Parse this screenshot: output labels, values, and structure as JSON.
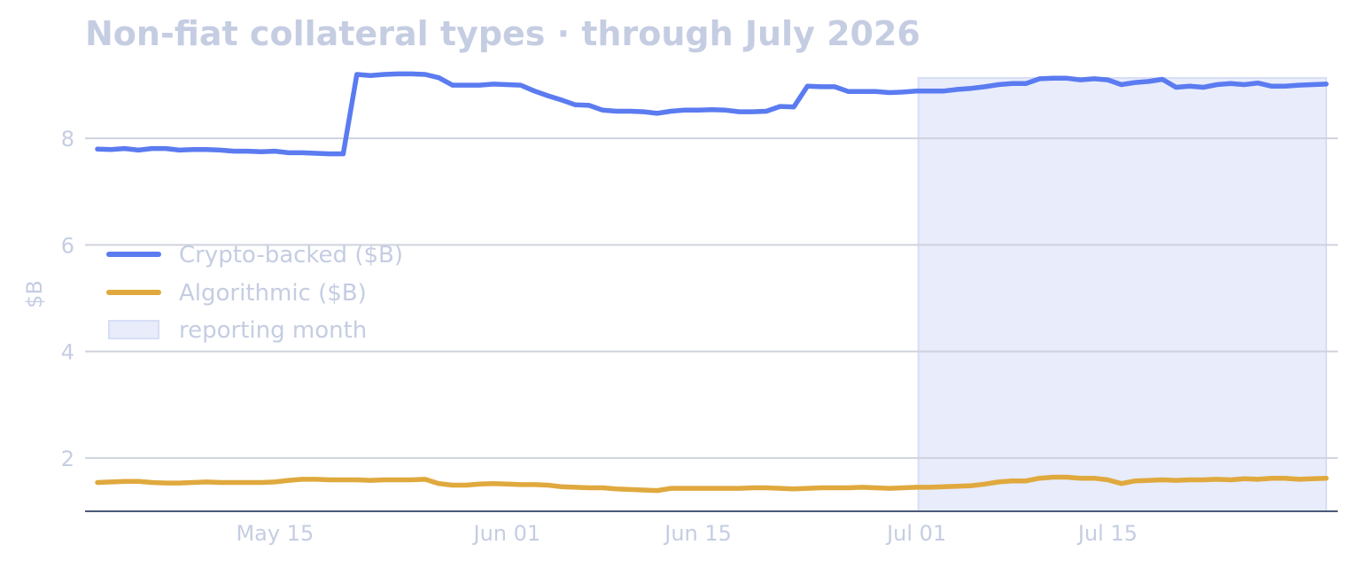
{
  "chart_data": {
    "type": "line",
    "title": "Non-fiat collateral types · through July 2026",
    "xlabel": "",
    "ylabel": "$B",
    "x_range": [
      "2026-05-02",
      "2026-07-31"
    ],
    "ylim": [
      1.0,
      9.6
    ],
    "y_ticks": [
      2,
      4,
      6,
      8
    ],
    "x_ticks": [
      {
        "date": "2026-05-15",
        "label": "May 15"
      },
      {
        "date": "2026-06-01",
        "label": "Jun 01"
      },
      {
        "date": "2026-06-15",
        "label": "Jun 15"
      },
      {
        "date": "2026-07-01",
        "label": "Jul 01"
      },
      {
        "date": "2026-07-15",
        "label": "Jul 15"
      }
    ],
    "grid": "horizontal",
    "legend_position": "left",
    "x": [
      "2026-05-02",
      "2026-05-03",
      "2026-05-04",
      "2026-05-05",
      "2026-05-06",
      "2026-05-07",
      "2026-05-08",
      "2026-05-09",
      "2026-05-10",
      "2026-05-11",
      "2026-05-12",
      "2026-05-13",
      "2026-05-14",
      "2026-05-15",
      "2026-05-16",
      "2026-05-17",
      "2026-05-18",
      "2026-05-19",
      "2026-05-20",
      "2026-05-21",
      "2026-05-22",
      "2026-05-23",
      "2026-05-24",
      "2026-05-25",
      "2026-05-26",
      "2026-05-27",
      "2026-05-28",
      "2026-05-29",
      "2026-05-30",
      "2026-05-31",
      "2026-06-01",
      "2026-06-02",
      "2026-06-03",
      "2026-06-04",
      "2026-06-05",
      "2026-06-06",
      "2026-06-07",
      "2026-06-08",
      "2026-06-09",
      "2026-06-10",
      "2026-06-11",
      "2026-06-12",
      "2026-06-13",
      "2026-06-14",
      "2026-06-15",
      "2026-06-16",
      "2026-06-17",
      "2026-06-18",
      "2026-06-19",
      "2026-06-20",
      "2026-06-21",
      "2026-06-22",
      "2026-06-23",
      "2026-06-24",
      "2026-06-25",
      "2026-06-26",
      "2026-06-27",
      "2026-06-28",
      "2026-06-29",
      "2026-06-30",
      "2026-07-01",
      "2026-07-02",
      "2026-07-03",
      "2026-07-04",
      "2026-07-05",
      "2026-07-06",
      "2026-07-07",
      "2026-07-08",
      "2026-07-09",
      "2026-07-10",
      "2026-07-11",
      "2026-07-12",
      "2026-07-13",
      "2026-07-14",
      "2026-07-15",
      "2026-07-16",
      "2026-07-17",
      "2026-07-18",
      "2026-07-19",
      "2026-07-20",
      "2026-07-21",
      "2026-07-22",
      "2026-07-23",
      "2026-07-24",
      "2026-07-25",
      "2026-07-26",
      "2026-07-27",
      "2026-07-28",
      "2026-07-29",
      "2026-07-30",
      "2026-07-31"
    ],
    "series": [
      {
        "name": "Crypto-backed ($B)",
        "color": "#5b7bf0",
        "values": [
          7.8,
          7.79,
          7.81,
          7.78,
          7.81,
          7.81,
          7.78,
          7.79,
          7.79,
          7.78,
          7.76,
          7.76,
          7.75,
          7.76,
          7.73,
          7.73,
          7.72,
          7.71,
          7.71,
          9.2,
          9.18,
          9.2,
          9.21,
          9.21,
          9.2,
          9.14,
          9.0,
          9.0,
          9.0,
          9.02,
          9.01,
          9.0,
          8.89,
          8.8,
          8.72,
          8.63,
          8.62,
          8.53,
          8.51,
          8.51,
          8.5,
          8.47,
          8.51,
          8.53,
          8.53,
          8.54,
          8.53,
          8.5,
          8.5,
          8.51,
          8.6,
          8.59,
          8.98,
          8.97,
          8.97,
          8.88,
          8.88,
          8.88,
          8.86,
          8.87,
          8.89,
          8.89,
          8.89,
          8.92,
          8.94,
          8.97,
          9.01,
          9.03,
          9.03,
          9.12,
          9.13,
          9.13,
          9.1,
          9.12,
          9.1,
          9.01,
          9.05,
          9.07,
          9.11,
          8.96,
          8.98,
          8.96,
          9.01,
          9.03,
          9.01,
          9.04,
          8.98,
          8.98,
          9.0,
          9.01,
          9.02
        ]
      },
      {
        "name": "Algorithmic ($B)",
        "color": "#e0a93e",
        "values": [
          1.54,
          1.55,
          1.56,
          1.56,
          1.54,
          1.53,
          1.53,
          1.54,
          1.55,
          1.54,
          1.54,
          1.54,
          1.54,
          1.55,
          1.58,
          1.6,
          1.6,
          1.59,
          1.59,
          1.59,
          1.58,
          1.59,
          1.59,
          1.59,
          1.6,
          1.52,
          1.49,
          1.49,
          1.51,
          1.52,
          1.51,
          1.5,
          1.5,
          1.49,
          1.46,
          1.45,
          1.44,
          1.44,
          1.42,
          1.41,
          1.4,
          1.39,
          1.43,
          1.43,
          1.43,
          1.43,
          1.43,
          1.43,
          1.44,
          1.44,
          1.43,
          1.42,
          1.43,
          1.44,
          1.44,
          1.44,
          1.45,
          1.44,
          1.43,
          1.44,
          1.45,
          1.45,
          1.46,
          1.47,
          1.48,
          1.51,
          1.55,
          1.57,
          1.57,
          1.62,
          1.64,
          1.64,
          1.62,
          1.62,
          1.59,
          1.52,
          1.57,
          1.58,
          1.59,
          1.58,
          1.59,
          1.59,
          1.6,
          1.59,
          1.61,
          1.6,
          1.62,
          1.62,
          1.6,
          1.61,
          1.62
        ]
      }
    ],
    "shaded_region": {
      "name": "reporting month",
      "start": "2026-07-01",
      "end": "2026-07-31",
      "color": "#e8ecfb"
    }
  }
}
